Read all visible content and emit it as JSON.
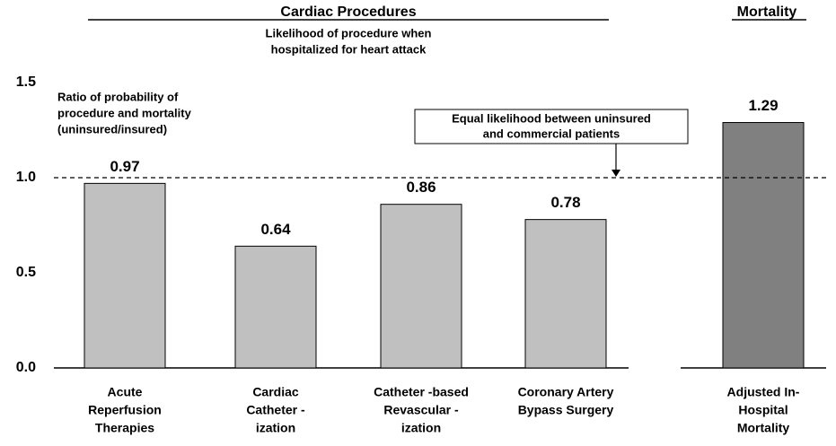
{
  "chart_data": {
    "type": "bar",
    "groups": [
      {
        "title": "Cardiac Procedures",
        "subtitle": [
          "Likelihood of procedure when",
          "hospitalized for heart attack"
        ]
      },
      {
        "title": "Mortality"
      }
    ],
    "y_label": [
      "Ratio of probability of",
      "procedure and mortality",
      "(uninsured/insured)"
    ],
    "categories": [
      [
        "Acute",
        "Reperfusion",
        "Therapies"
      ],
      [
        "Cardiac",
        "Catheter -",
        "ization"
      ],
      [
        "Catheter -based",
        "Revascular -",
        "ization"
      ],
      [
        "Coronary Artery",
        "Bypass Surgery"
      ],
      [
        "Adjusted In-",
        "Hospital",
        "Mortality"
      ]
    ],
    "values": [
      0.97,
      0.64,
      0.86,
      0.78,
      1.29
    ],
    "colors": [
      "#c0c0c0",
      "#c0c0c0",
      "#c0c0c0",
      "#c0c0c0",
      "#808080"
    ],
    "ylim": [
      0,
      1.5
    ],
    "yticks": [
      {
        "value": 0,
        "label": "0.0"
      },
      {
        "value": 0.5,
        "label": "0.5"
      },
      {
        "value": 1,
        "label": "1.0"
      },
      {
        "value": 1.5,
        "label": "1.5"
      }
    ],
    "reference_line": {
      "value": 1,
      "annotation": [
        "Equal likelihood between uninsured",
        "and commercial patients"
      ]
    }
  }
}
